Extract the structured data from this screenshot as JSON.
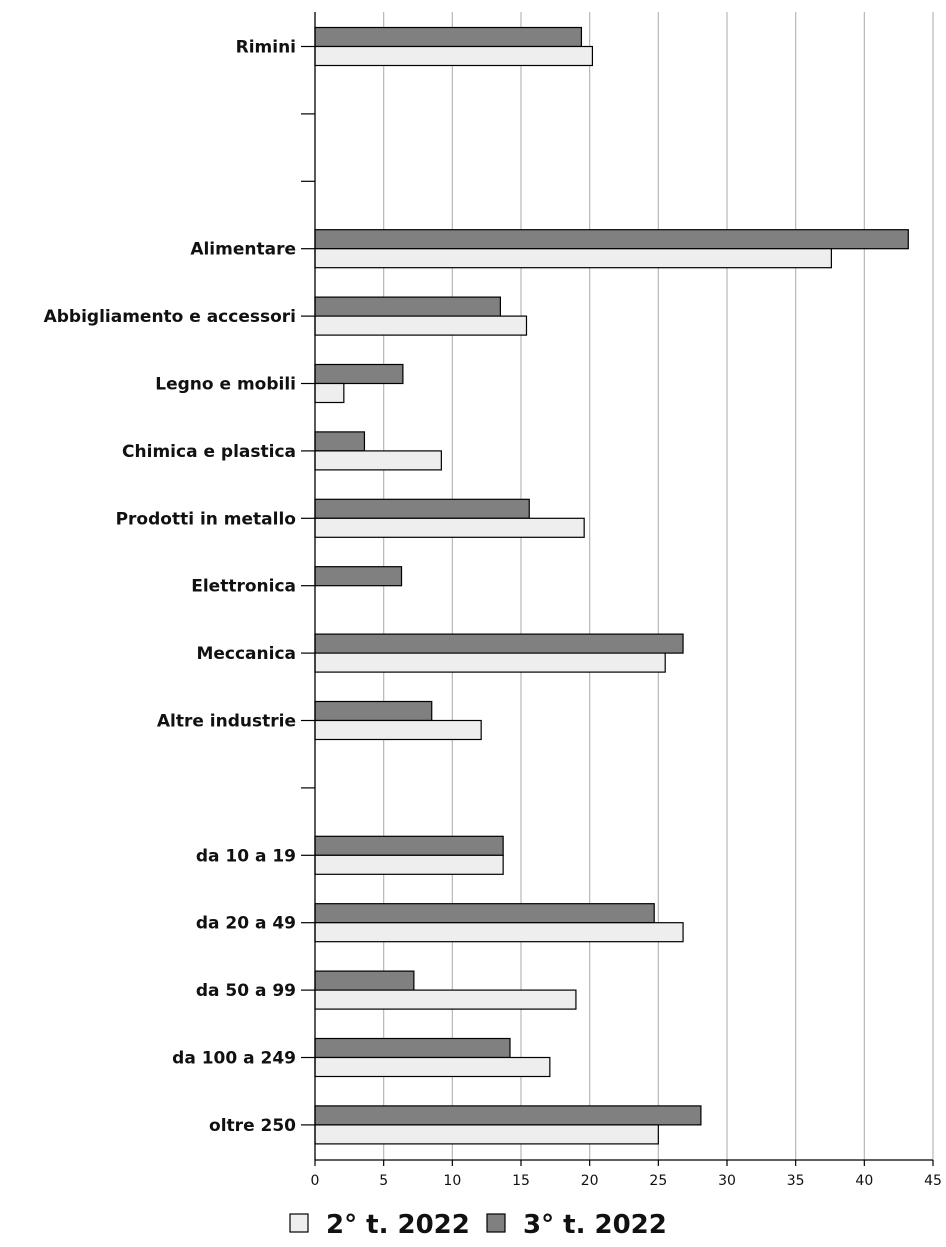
{
  "chart_data": {
    "type": "bar",
    "orientation": "horizontal",
    "title": "",
    "xlabel": "",
    "ylabel": "",
    "xlim": [
      0,
      45
    ],
    "xticks": [
      0,
      5,
      10,
      15,
      20,
      25,
      30,
      35,
      40,
      45
    ],
    "grid": "vertical",
    "legend_position": "bottom",
    "categories": [
      "Rimini",
      "",
      "",
      "Alimentare",
      "Abbigliamento e accessori",
      "Legno e mobili",
      "Chimica e plastica",
      "Prodotti in metallo",
      "Elettronica",
      "Meccanica",
      "Altre industrie",
      "",
      "da 10 a 19",
      "da 20 a 49",
      "da 50 a 99",
      "da 100 a 249",
      "oltre 250"
    ],
    "series": [
      {
        "name": "2° t. 2022",
        "color": "#eeeeee",
        "values": [
          20.2,
          null,
          null,
          37.6,
          15.4,
          2.1,
          9.2,
          19.6,
          0,
          25.5,
          12.1,
          null,
          13.7,
          26.8,
          19.0,
          17.1,
          25.0
        ]
      },
      {
        "name": "3° t. 2022",
        "color": "#808080",
        "values": [
          19.4,
          null,
          null,
          43.2,
          13.5,
          6.4,
          3.6,
          15.6,
          6.3,
          26.8,
          8.5,
          null,
          13.7,
          24.7,
          7.2,
          14.2,
          28.1
        ]
      }
    ]
  }
}
